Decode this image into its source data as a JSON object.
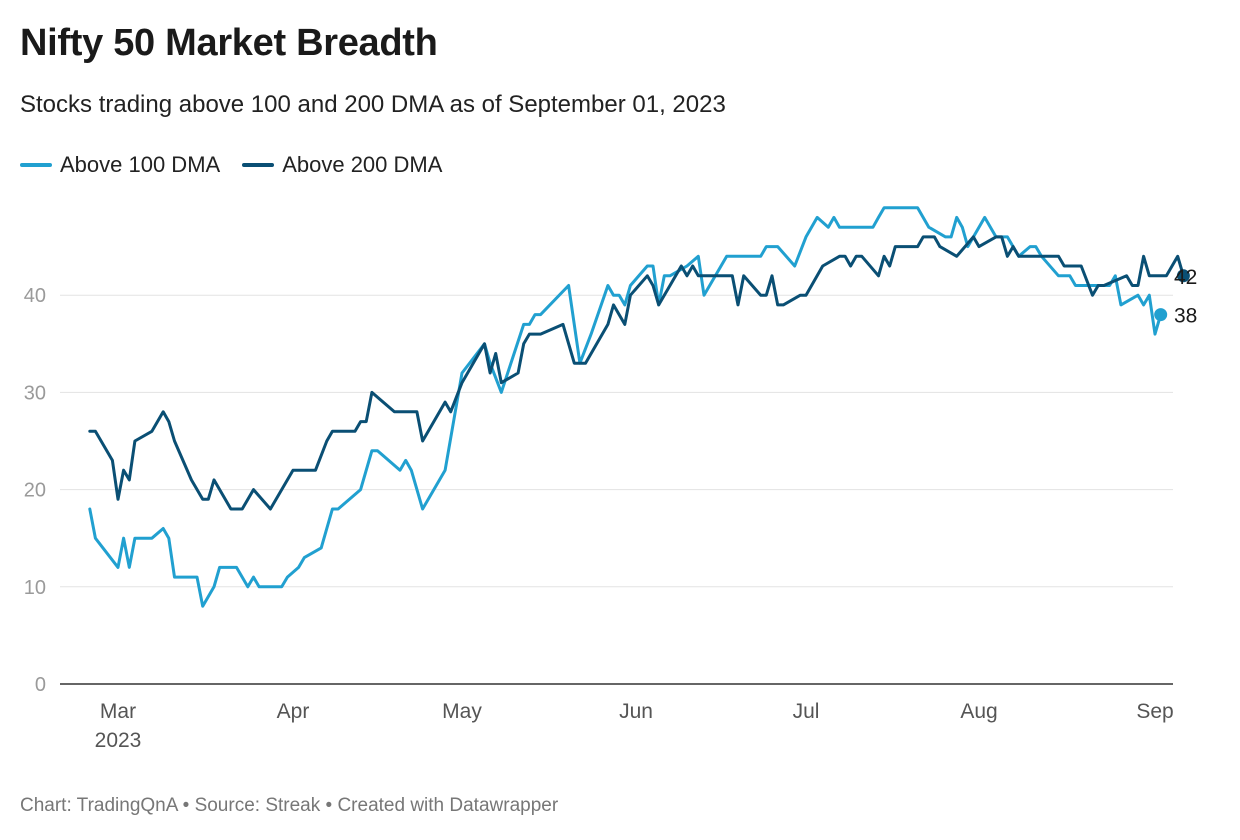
{
  "header": {
    "title": "Nifty 50 Market Breadth",
    "subtitle": "Stocks trading above 100 and 200 DMA as of September 01, 2023"
  },
  "footer": {
    "credit": "Chart: TradingQnA • Source: Streak • Created with Datawrapper"
  },
  "colors": {
    "above_100": "#21a0d0",
    "above_200": "#0a4f74",
    "grid": "#e3e3e3",
    "axis": "#333333",
    "tick_y": "#9a9a9a",
    "tick_x": "#555555"
  },
  "chart_data": {
    "type": "line",
    "title": "Nifty 50 Market Breadth",
    "subtitle": "Stocks trading above 100 and 200 DMA as of September 01, 2023",
    "xlabel": "",
    "ylabel": "",
    "xlim": [
      "2023-02-20",
      "2023-09-01"
    ],
    "ylim": [
      0,
      50
    ],
    "yticks": [
      0,
      10,
      20,
      30,
      40
    ],
    "xticks": [
      {
        "date": "2023-03-01",
        "label": "Mar",
        "sublabel": "2023"
      },
      {
        "date": "2023-04-01",
        "label": "Apr",
        "sublabel": ""
      },
      {
        "date": "2023-05-01",
        "label": "May",
        "sublabel": ""
      },
      {
        "date": "2023-06-01",
        "label": "Jun",
        "sublabel": ""
      },
      {
        "date": "2023-07-01",
        "label": "Jul",
        "sublabel": ""
      },
      {
        "date": "2023-08-01",
        "label": "Aug",
        "sublabel": ""
      },
      {
        "date": "2023-09-01",
        "label": "Sep",
        "sublabel": ""
      }
    ],
    "grid": "horizontal",
    "legend": "top-left",
    "series": [
      {
        "name": "Above 100 DMA",
        "color": "#21a0d0",
        "end_label": "38",
        "points": [
          [
            "2023-02-24",
            18
          ],
          [
            "2023-02-25",
            15
          ],
          [
            "2023-03-01",
            12
          ],
          [
            "2023-03-02",
            15
          ],
          [
            "2023-03-03",
            12
          ],
          [
            "2023-03-04",
            15
          ],
          [
            "2023-03-07",
            15
          ],
          [
            "2023-03-09",
            16
          ],
          [
            "2023-03-10",
            15
          ],
          [
            "2023-03-11",
            11
          ],
          [
            "2023-03-15",
            11
          ],
          [
            "2023-03-16",
            8
          ],
          [
            "2023-03-18",
            10
          ],
          [
            "2023-03-19",
            12
          ],
          [
            "2023-03-22",
            12
          ],
          [
            "2023-03-24",
            10
          ],
          [
            "2023-03-25",
            11
          ],
          [
            "2023-03-26",
            10
          ],
          [
            "2023-03-30",
            10
          ],
          [
            "2023-03-31",
            11
          ],
          [
            "2023-04-02",
            12
          ],
          [
            "2023-04-03",
            13
          ],
          [
            "2023-04-06",
            14
          ],
          [
            "2023-04-08",
            18
          ],
          [
            "2023-04-09",
            18
          ],
          [
            "2023-04-13",
            20
          ],
          [
            "2023-04-15",
            24
          ],
          [
            "2023-04-16",
            24
          ],
          [
            "2023-04-20",
            22
          ],
          [
            "2023-04-21",
            23
          ],
          [
            "2023-04-22",
            22
          ],
          [
            "2023-04-24",
            18
          ],
          [
            "2023-04-28",
            22
          ],
          [
            "2023-05-01",
            32
          ],
          [
            "2023-05-05",
            35
          ],
          [
            "2023-05-06",
            33
          ],
          [
            "2023-05-08",
            30
          ],
          [
            "2023-05-12",
            37
          ],
          [
            "2023-05-13",
            37
          ],
          [
            "2023-05-14",
            38
          ],
          [
            "2023-05-15",
            38
          ],
          [
            "2023-05-20",
            41
          ],
          [
            "2023-05-22",
            33
          ],
          [
            "2023-05-24",
            36
          ],
          [
            "2023-05-27",
            41
          ],
          [
            "2023-05-28",
            40
          ],
          [
            "2023-05-29",
            40
          ],
          [
            "2023-05-30",
            39
          ],
          [
            "2023-05-31",
            41
          ],
          [
            "2023-06-03",
            43
          ],
          [
            "2023-06-04",
            43
          ],
          [
            "2023-06-05",
            39
          ],
          [
            "2023-06-06",
            42
          ],
          [
            "2023-06-07",
            42
          ],
          [
            "2023-06-10",
            43
          ],
          [
            "2023-06-12",
            44
          ],
          [
            "2023-06-13",
            40
          ],
          [
            "2023-06-17",
            44
          ],
          [
            "2023-06-23",
            44
          ],
          [
            "2023-06-24",
            45
          ],
          [
            "2023-06-26",
            45
          ],
          [
            "2023-06-29",
            43
          ],
          [
            "2023-07-01",
            46
          ],
          [
            "2023-07-03",
            48
          ],
          [
            "2023-07-05",
            47
          ],
          [
            "2023-07-06",
            48
          ],
          [
            "2023-07-07",
            47
          ],
          [
            "2023-07-13",
            47
          ],
          [
            "2023-07-14",
            48
          ],
          [
            "2023-07-15",
            49
          ],
          [
            "2023-07-21",
            49
          ],
          [
            "2023-07-23",
            47
          ],
          [
            "2023-07-26",
            46
          ],
          [
            "2023-07-27",
            46
          ],
          [
            "2023-07-28",
            48
          ],
          [
            "2023-07-29",
            47
          ],
          [
            "2023-07-30",
            45
          ],
          [
            "2023-08-02",
            48
          ],
          [
            "2023-08-04",
            46
          ],
          [
            "2023-08-06",
            46
          ],
          [
            "2023-08-08",
            44
          ],
          [
            "2023-08-10",
            45
          ],
          [
            "2023-08-11",
            45
          ],
          [
            "2023-08-12",
            44
          ],
          [
            "2023-08-15",
            42
          ],
          [
            "2023-08-17",
            42
          ],
          [
            "2023-08-18",
            41
          ],
          [
            "2023-08-24",
            41
          ],
          [
            "2023-08-25",
            42
          ],
          [
            "2023-08-26",
            39
          ],
          [
            "2023-08-29",
            40
          ],
          [
            "2023-08-30",
            39
          ],
          [
            "2023-08-31",
            40
          ],
          [
            "2023-09-01",
            36
          ],
          [
            "2023-09-02",
            38
          ]
        ]
      },
      {
        "name": "Above 200 DMA",
        "color": "#0a4f74",
        "end_label": "42",
        "points": [
          [
            "2023-02-24",
            26
          ],
          [
            "2023-02-25",
            26
          ],
          [
            "2023-02-28",
            23
          ],
          [
            "2023-03-01",
            19
          ],
          [
            "2023-03-02",
            22
          ],
          [
            "2023-03-03",
            21
          ],
          [
            "2023-03-04",
            25
          ],
          [
            "2023-03-07",
            26
          ],
          [
            "2023-03-09",
            28
          ],
          [
            "2023-03-10",
            27
          ],
          [
            "2023-03-11",
            25
          ],
          [
            "2023-03-14",
            21
          ],
          [
            "2023-03-16",
            19
          ],
          [
            "2023-03-17",
            19
          ],
          [
            "2023-03-18",
            21
          ],
          [
            "2023-03-21",
            18
          ],
          [
            "2023-03-23",
            18
          ],
          [
            "2023-03-25",
            20
          ],
          [
            "2023-03-28",
            18
          ],
          [
            "2023-04-01",
            22
          ],
          [
            "2023-04-05",
            22
          ],
          [
            "2023-04-07",
            25
          ],
          [
            "2023-04-08",
            26
          ],
          [
            "2023-04-12",
            26
          ],
          [
            "2023-04-13",
            27
          ],
          [
            "2023-04-14",
            27
          ],
          [
            "2023-04-15",
            30
          ],
          [
            "2023-04-19",
            28
          ],
          [
            "2023-04-23",
            28
          ],
          [
            "2023-04-24",
            25
          ],
          [
            "2023-04-28",
            29
          ],
          [
            "2023-04-29",
            28
          ],
          [
            "2023-05-01",
            31
          ],
          [
            "2023-05-05",
            35
          ],
          [
            "2023-05-06",
            32
          ],
          [
            "2023-05-07",
            34
          ],
          [
            "2023-05-08",
            31
          ],
          [
            "2023-05-11",
            32
          ],
          [
            "2023-05-12",
            35
          ],
          [
            "2023-05-13",
            36
          ],
          [
            "2023-05-15",
            36
          ],
          [
            "2023-05-19",
            37
          ],
          [
            "2023-05-21",
            33
          ],
          [
            "2023-05-23",
            33
          ],
          [
            "2023-05-27",
            37
          ],
          [
            "2023-05-28",
            39
          ],
          [
            "2023-05-30",
            37
          ],
          [
            "2023-05-31",
            40
          ],
          [
            "2023-06-03",
            42
          ],
          [
            "2023-06-04",
            41
          ],
          [
            "2023-06-05",
            39
          ],
          [
            "2023-06-07",
            41
          ],
          [
            "2023-06-09",
            43
          ],
          [
            "2023-06-10",
            42
          ],
          [
            "2023-06-11",
            43
          ],
          [
            "2023-06-12",
            42
          ],
          [
            "2023-06-18",
            42
          ],
          [
            "2023-06-19",
            39
          ],
          [
            "2023-06-20",
            42
          ],
          [
            "2023-06-23",
            40
          ],
          [
            "2023-06-24",
            40
          ],
          [
            "2023-06-25",
            42
          ],
          [
            "2023-06-26",
            39
          ],
          [
            "2023-06-27",
            39
          ],
          [
            "2023-06-30",
            40
          ],
          [
            "2023-07-01",
            40
          ],
          [
            "2023-07-04",
            43
          ],
          [
            "2023-07-07",
            44
          ],
          [
            "2023-07-08",
            44
          ],
          [
            "2023-07-09",
            43
          ],
          [
            "2023-07-10",
            44
          ],
          [
            "2023-07-11",
            44
          ],
          [
            "2023-07-14",
            42
          ],
          [
            "2023-07-15",
            44
          ],
          [
            "2023-07-16",
            43
          ],
          [
            "2023-07-17",
            45
          ],
          [
            "2023-07-21",
            45
          ],
          [
            "2023-07-22",
            46
          ],
          [
            "2023-07-24",
            46
          ],
          [
            "2023-07-25",
            45
          ],
          [
            "2023-07-28",
            44
          ],
          [
            "2023-07-31",
            46
          ],
          [
            "2023-08-01",
            45
          ],
          [
            "2023-08-04",
            46
          ],
          [
            "2023-08-05",
            46
          ],
          [
            "2023-08-06",
            44
          ],
          [
            "2023-08-07",
            45
          ],
          [
            "2023-08-08",
            44
          ],
          [
            "2023-08-15",
            44
          ],
          [
            "2023-08-16",
            43
          ],
          [
            "2023-08-19",
            43
          ],
          [
            "2023-08-21",
            40
          ],
          [
            "2023-08-22",
            41
          ],
          [
            "2023-08-23",
            41
          ],
          [
            "2023-08-27",
            42
          ],
          [
            "2023-08-28",
            41
          ],
          [
            "2023-08-29",
            41
          ],
          [
            "2023-08-30",
            44
          ],
          [
            "2023-08-31",
            42
          ],
          [
            "2023-09-03",
            42
          ],
          [
            "2023-09-05",
            44
          ],
          [
            "2023-09-06",
            42
          ]
        ]
      }
    ]
  }
}
